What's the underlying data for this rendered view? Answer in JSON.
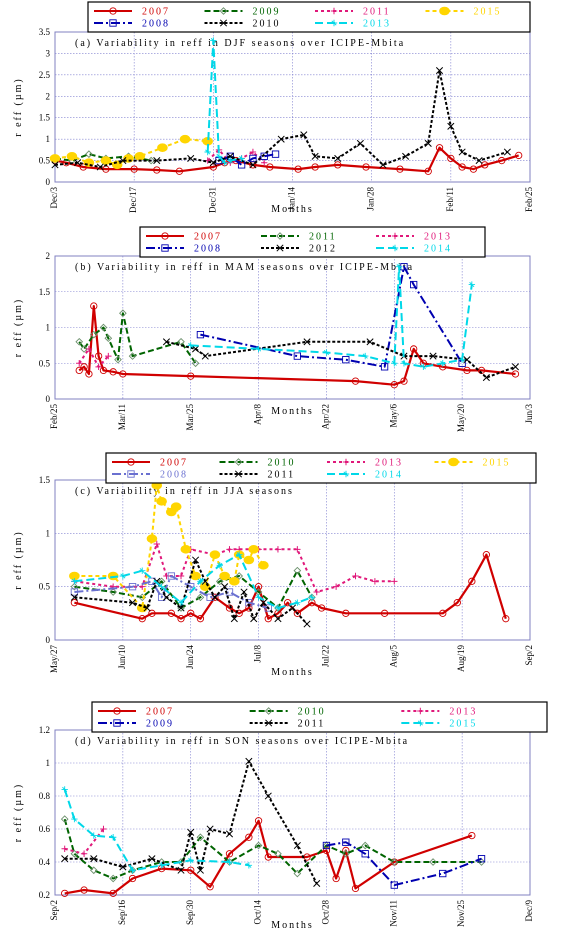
{
  "chart_data": [
    {
      "type": "line",
      "title": "(a) Variability in reff in DJF seasons over ICIPE-Mbita",
      "xlabel": "Months",
      "ylabel": "r eff (µm)",
      "ylim": [
        0,
        3.5
      ],
      "yticks": [
        0,
        0.5,
        1,
        1.5,
        2,
        2.5,
        3,
        3.5
      ],
      "ytick_labels": [
        "0",
        "0.5",
        "1",
        "1.5",
        "2",
        "2.5",
        "3",
        "3.5"
      ],
      "xlim": [
        0,
        84
      ],
      "xticks": [
        0,
        14,
        28,
        42,
        56,
        70,
        84
      ],
      "xtick_labels": [
        "Dec/3",
        "Dec/17",
        "Dec/31",
        "Jan/14",
        "Jan/28",
        "Feb/11",
        "Feb/25"
      ],
      "legend": [
        {
          "name": "2007",
          "color": "#d00000",
          "dash": "",
          "marker": "circle"
        },
        {
          "name": "2009",
          "color": "#006400",
          "dash": "6,3",
          "marker": "diamond"
        },
        {
          "name": "2011",
          "color": "#e0187a",
          "dash": "3,3",
          "marker": "plus"
        },
        {
          "name": "2015",
          "color": "#ffd500",
          "dash": "4,3",
          "marker": "dot"
        },
        {
          "name": "2008",
          "color": "#0000b0",
          "dash": "9,3,2,3",
          "marker": "square"
        },
        {
          "name": "2010",
          "color": "#000000",
          "dash": "3,2",
          "marker": "x"
        },
        {
          "name": "2013",
          "color": "#00d8e8",
          "dash": "8,4",
          "marker": "star"
        }
      ],
      "series": [
        {
          "name": "2007",
          "x": [
            0,
            2,
            5,
            9,
            14,
            18,
            22,
            28,
            30,
            32,
            35,
            38,
            43,
            46,
            50,
            55,
            61,
            66,
            68,
            70,
            72,
            74,
            76,
            79,
            82
          ],
          "y": [
            0.5,
            0.45,
            0.35,
            0.3,
            0.3,
            0.28,
            0.25,
            0.35,
            0.45,
            0.5,
            0.4,
            0.35,
            0.3,
            0.35,
            0.4,
            0.35,
            0.3,
            0.25,
            0.8,
            0.55,
            0.35,
            0.3,
            0.4,
            0.5,
            0.62
          ]
        },
        {
          "name": "2009",
          "x": [
            0,
            3,
            6,
            9,
            13,
            17
          ],
          "y": [
            0.55,
            0.5,
            0.65,
            0.55,
            0.6,
            0.5
          ]
        },
        {
          "name": "2011",
          "x": [
            27,
            29,
            31,
            33,
            35,
            37
          ],
          "y": [
            0.5,
            0.75,
            0.45,
            0.55,
            0.7,
            0.45
          ]
        },
        {
          "name": "2015",
          "x": [
            0,
            3,
            6,
            9,
            11,
            13,
            15,
            19,
            23,
            27
          ],
          "y": [
            0.55,
            0.6,
            0.45,
            0.5,
            0.4,
            0.55,
            0.6,
            0.8,
            1.0,
            0.95
          ]
        },
        {
          "name": "2008",
          "x": [
            29,
            31,
            33,
            35,
            37,
            39
          ],
          "y": [
            0.5,
            0.6,
            0.4,
            0.55,
            0.6,
            0.65
          ]
        },
        {
          "name": "2010",
          "x": [
            0,
            4,
            8,
            12,
            18,
            24,
            28,
            31,
            35,
            40,
            44,
            46,
            50,
            54,
            58,
            62,
            66,
            68,
            70,
            72,
            75,
            80
          ],
          "y": [
            0.4,
            0.45,
            0.35,
            0.5,
            0.5,
            0.55,
            0.45,
            0.6,
            0.4,
            1.0,
            1.1,
            0.6,
            0.55,
            0.9,
            0.4,
            0.6,
            0.9,
            2.6,
            1.3,
            0.7,
            0.5,
            0.7
          ]
        },
        {
          "name": "2013",
          "x": [
            27,
            28,
            29,
            30,
            31,
            33
          ],
          "y": [
            0.7,
            3.3,
            0.6,
            0.45,
            0.5,
            0.55
          ]
        }
      ]
    },
    {
      "type": "line",
      "title": "(b) Variability in reff in MAM seasons over ICIPE-Mbita",
      "xlabel": "Months",
      "ylabel": "r eff (µm)",
      "ylim": [
        0,
        2
      ],
      "yticks": [
        0,
        0.5,
        1,
        1.5,
        2
      ],
      "ytick_labels": [
        "0",
        "0.5",
        "1",
        "1.5",
        "2"
      ],
      "xlim": [
        0,
        98
      ],
      "xticks": [
        0,
        14,
        28,
        42,
        56,
        70,
        84,
        98
      ],
      "xtick_labels": [
        "Feb/25",
        "Mar/11",
        "Mar/25",
        "Apr/8",
        "Apr/22",
        "May/6",
        "May/20",
        "Jun/3"
      ],
      "legend": [
        {
          "name": "2007",
          "color": "#d00000",
          "dash": "",
          "marker": "circle"
        },
        {
          "name": "2011",
          "color": "#006400",
          "dash": "6,3",
          "marker": "diamond"
        },
        {
          "name": "2013",
          "color": "#e0187a",
          "dash": "3,3",
          "marker": "plus"
        },
        {
          "name": "2008",
          "color": "#0000b0",
          "dash": "9,3,2,3",
          "marker": "square"
        },
        {
          "name": "2012",
          "color": "#000000",
          "dash": "3,2",
          "marker": "x"
        },
        {
          "name": "2014",
          "color": "#00d8e8",
          "dash": "8,4",
          "marker": "star"
        }
      ],
      "series": [
        {
          "name": "2007",
          "x": [
            5,
            6,
            7,
            8,
            9,
            10,
            12,
            14,
            28,
            62,
            70,
            72,
            74,
            76,
            80,
            85,
            88,
            95
          ],
          "y": [
            0.4,
            0.45,
            0.35,
            1.3,
            0.6,
            0.4,
            0.38,
            0.35,
            0.32,
            0.25,
            0.2,
            0.25,
            0.7,
            0.5,
            0.45,
            0.4,
            0.4,
            0.35
          ]
        },
        {
          "name": "2011",
          "x": [
            5,
            6,
            8,
            10,
            11,
            13,
            14,
            16,
            26,
            29
          ],
          "y": [
            0.8,
            0.7,
            0.9,
            1.0,
            0.85,
            0.55,
            1.2,
            0.6,
            0.8,
            0.5
          ]
        },
        {
          "name": "2013",
          "x": [
            5,
            7,
            9,
            11
          ],
          "y": [
            0.5,
            0.7,
            0.45,
            0.6
          ]
        },
        {
          "name": "2008",
          "x": [
            30,
            50,
            60,
            68,
            72,
            74,
            84
          ],
          "y": [
            0.9,
            0.6,
            0.55,
            0.45,
            1.85,
            1.6,
            0.5
          ]
        },
        {
          "name": "2012",
          "x": [
            23,
            29,
            31,
            52,
            65,
            72,
            78,
            85,
            89,
            95
          ],
          "y": [
            0.8,
            0.7,
            0.6,
            0.8,
            0.8,
            0.6,
            0.6,
            0.55,
            0.3,
            0.45
          ]
        },
        {
          "name": "2014",
          "x": [
            28,
            42,
            56,
            64,
            70,
            71,
            72,
            76,
            80,
            84,
            86
          ],
          "y": [
            0.75,
            0.7,
            0.65,
            0.6,
            0.5,
            1.85,
            0.5,
            0.45,
            0.5,
            0.55,
            1.6
          ]
        }
      ]
    },
    {
      "type": "line",
      "title": "(c) Variability in reff in JJA seasons",
      "xlabel": "Months",
      "ylabel": "r eff (µm)",
      "ylim": [
        0,
        1.5
      ],
      "yticks": [
        0,
        0.5,
        1,
        1.5
      ],
      "ytick_labels": [
        "0",
        "0.5",
        "1",
        "1.5"
      ],
      "xlim": [
        0,
        98
      ],
      "xticks": [
        0,
        14,
        28,
        42,
        56,
        70,
        84,
        98
      ],
      "xtick_labels": [
        "May/27",
        "Jun/10",
        "Jun/24",
        "Jul/8",
        "Jul/22",
        "Aug/5",
        "Aug/19",
        "Sep/2"
      ],
      "legend": [
        {
          "name": "2007",
          "color": "#d00000",
          "dash": "",
          "marker": "circle"
        },
        {
          "name": "2010",
          "color": "#006400",
          "dash": "6,3",
          "marker": "diamond"
        },
        {
          "name": "2013",
          "color": "#e0187a",
          "dash": "3,3",
          "marker": "plus"
        },
        {
          "name": "2015",
          "color": "#ffd500",
          "dash": "4,3",
          "marker": "dot"
        },
        {
          "name": "2008",
          "color": "#6a70d0",
          "dash": "9,3,2,3",
          "marker": "square"
        },
        {
          "name": "2011",
          "color": "#000000",
          "dash": "3,2",
          "marker": "x"
        },
        {
          "name": "2014",
          "color": "#00d8e8",
          "dash": "8,4",
          "marker": "star"
        }
      ],
      "series": [
        {
          "name": "2007",
          "x": [
            4,
            18,
            20,
            24,
            26,
            28,
            30,
            33,
            36,
            38,
            40,
            42,
            44,
            46,
            48,
            50,
            53,
            55,
            60,
            68,
            80,
            83,
            86,
            89,
            93
          ],
          "y": [
            0.35,
            0.2,
            0.25,
            0.25,
            0.2,
            0.25,
            0.2,
            0.4,
            0.3,
            0.25,
            0.3,
            0.5,
            0.2,
            0.25,
            0.35,
            0.25,
            0.35,
            0.3,
            0.25,
            0.25,
            0.25,
            0.35,
            0.55,
            0.8,
            0.2
          ]
        },
        {
          "name": "2010",
          "x": [
            4,
            12,
            18,
            22,
            26,
            30,
            34,
            38,
            42,
            46,
            50,
            53
          ],
          "y": [
            0.5,
            0.45,
            0.4,
            0.55,
            0.3,
            0.4,
            0.55,
            0.6,
            0.45,
            0.3,
            0.65,
            0.4
          ]
        },
        {
          "name": "2013",
          "x": [
            4,
            12,
            18,
            21,
            23,
            26,
            28,
            33,
            36,
            38,
            42,
            46,
            50,
            54,
            58,
            62,
            66,
            70
          ],
          "y": [
            0.55,
            0.5,
            0.5,
            0.9,
            0.6,
            0.6,
            0.85,
            0.8,
            0.85,
            0.85,
            0.85,
            0.85,
            0.85,
            0.45,
            0.5,
            0.6,
            0.55,
            0.55
          ]
        },
        {
          "name": "2015",
          "x": [
            4,
            12,
            18,
            20,
            21,
            22,
            24,
            25,
            27,
            29,
            31,
            33,
            35,
            37,
            38,
            40,
            41,
            43
          ],
          "y": [
            0.6,
            0.6,
            0.3,
            0.95,
            1.45,
            1.3,
            1.2,
            1.25,
            0.85,
            0.6,
            0.5,
            0.8,
            0.6,
            0.55,
            0.8,
            0.75,
            0.85,
            0.7
          ]
        },
        {
          "name": "2008",
          "x": [
            4,
            16,
            20,
            22,
            24,
            28,
            32,
            36,
            40,
            44
          ],
          "y": [
            0.45,
            0.5,
            0.55,
            0.4,
            0.6,
            0.5,
            0.4,
            0.45,
            0.35,
            0.3
          ]
        },
        {
          "name": "2011",
          "x": [
            4,
            16,
            19,
            21,
            23,
            26,
            29,
            31,
            33,
            35,
            37,
            39,
            41,
            43,
            46,
            49,
            52
          ],
          "y": [
            0.4,
            0.35,
            0.3,
            0.55,
            0.4,
            0.3,
            0.75,
            0.55,
            0.4,
            0.5,
            0.2,
            0.45,
            0.2,
            0.35,
            0.2,
            0.3,
            0.15
          ]
        },
        {
          "name": "2014",
          "x": [
            4,
            14,
            18,
            22,
            26,
            30,
            34,
            38,
            42,
            46,
            50,
            53
          ],
          "y": [
            0.55,
            0.6,
            0.65,
            0.5,
            0.35,
            0.55,
            0.7,
            0.8,
            0.4,
            0.3,
            0.35,
            0.4
          ]
        }
      ]
    },
    {
      "type": "line",
      "title": "(d) Variability in reff in SON seasons over ICIPE-Mbita",
      "xlabel": "Months",
      "ylabel": "r eff (µm)",
      "ylim": [
        0.2,
        1.2
      ],
      "yticks": [
        0.2,
        0.4,
        0.6,
        0.8,
        1,
        1.2
      ],
      "ytick_labels": [
        "0.2",
        "0.4",
        "0.6",
        "0.8",
        "1",
        "1.2"
      ],
      "xlim": [
        0,
        98
      ],
      "xticks": [
        0,
        14,
        28,
        42,
        56,
        70,
        84,
        98
      ],
      "xtick_labels": [
        "Sep/2",
        "Sep/16",
        "Sep/30",
        "Oct/14",
        "Oct/28",
        "Nov/11",
        "Nov/25",
        "Dec/9"
      ],
      "legend": [
        {
          "name": "2007",
          "color": "#d00000",
          "dash": "",
          "marker": "circle"
        },
        {
          "name": "2010",
          "color": "#006400",
          "dash": "6,3",
          "marker": "diamond"
        },
        {
          "name": "2013",
          "color": "#e0187a",
          "dash": "3,3",
          "marker": "plus"
        },
        {
          "name": "2009",
          "color": "#0000b0",
          "dash": "9,3,2,3",
          "marker": "square"
        },
        {
          "name": "2011",
          "color": "#000000",
          "dash": "3,2",
          "marker": "x"
        },
        {
          "name": "2015",
          "color": "#00d8e8",
          "dash": "8,4",
          "marker": "star"
        }
      ],
      "series": [
        {
          "name": "2007",
          "x": [
            2,
            6,
            12,
            16,
            22,
            28,
            32,
            36,
            40,
            42,
            44,
            52,
            56,
            58,
            60,
            62,
            70,
            86
          ],
          "y": [
            0.21,
            0.23,
            0.21,
            0.3,
            0.36,
            0.35,
            0.25,
            0.45,
            0.55,
            0.65,
            0.43,
            0.43,
            0.47,
            0.3,
            0.47,
            0.24,
            0.4,
            0.56
          ]
        },
        {
          "name": "2010",
          "x": [
            2,
            4,
            8,
            12,
            16,
            22,
            26,
            30,
            36,
            42,
            46,
            50,
            56,
            60,
            64,
            70,
            78,
            88
          ],
          "y": [
            0.66,
            0.45,
            0.35,
            0.3,
            0.35,
            0.4,
            0.4,
            0.55,
            0.4,
            0.5,
            0.45,
            0.33,
            0.5,
            0.45,
            0.5,
            0.4,
            0.4,
            0.4
          ]
        },
        {
          "name": "2013",
          "x": [
            2,
            6,
            10
          ],
          "y": [
            0.48,
            0.45,
            0.6
          ]
        },
        {
          "name": "2009",
          "x": [
            56,
            60,
            64,
            70,
            80,
            88
          ],
          "y": [
            0.5,
            0.52,
            0.45,
            0.26,
            0.33,
            0.42
          ]
        },
        {
          "name": "2011",
          "x": [
            2,
            8,
            14,
            20,
            26,
            28,
            30,
            32,
            36,
            40,
            44,
            50,
            54
          ],
          "y": [
            0.42,
            0.42,
            0.37,
            0.42,
            0.35,
            0.58,
            0.35,
            0.6,
            0.57,
            1.01,
            0.8,
            0.5,
            0.27
          ]
        },
        {
          "name": "2015",
          "x": [
            2,
            4,
            8,
            12,
            16,
            22,
            28,
            36,
            40
          ],
          "y": [
            0.84,
            0.66,
            0.56,
            0.55,
            0.35,
            0.38,
            0.41,
            0.4,
            0.38
          ]
        }
      ]
    }
  ]
}
